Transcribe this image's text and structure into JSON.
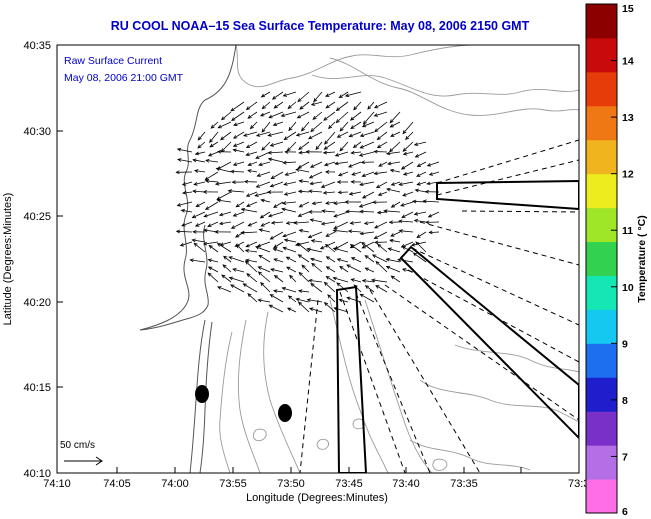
{
  "title": "RU COOL  NOAA–15  Sea Surface Temperature:  May 08, 2006 2150 GMT",
  "legend": {
    "line1": "Raw Surface Current",
    "line2": "May 08, 2006 21:00 GMT",
    "scale_label": "50 cm/s"
  },
  "axes": {
    "xlabel": "Longitude (Degrees:Minutes)",
    "ylabel": "Latitude (Degrees:Minutes)",
    "x_ticks": [
      "74:10",
      "74:05",
      "74:00",
      "73:55",
      "73:50",
      "73:45",
      "73:40",
      "73:35",
      "73:3"
    ],
    "y_ticks": [
      "40:35",
      "40:30",
      "40:25",
      "40:20",
      "40:15",
      "40:10"
    ]
  },
  "colorbar": {
    "label": "Temperature ( °C)",
    "ticks": [
      "15",
      "14",
      "13",
      "12",
      "11",
      "10",
      "9",
      "8",
      "7",
      "6"
    ],
    "range": [
      6,
      15
    ],
    "colors": [
      "#ff6ee6",
      "#b46ee6",
      "#7830c8",
      "#1e1ecc",
      "#1e6ef0",
      "#14c8f0",
      "#14e6b4",
      "#32d250",
      "#a0e628",
      "#ecec1e",
      "#f0b41e",
      "#f07814",
      "#e63c0a",
      "#c80a0a",
      "#8c0000"
    ]
  }
}
